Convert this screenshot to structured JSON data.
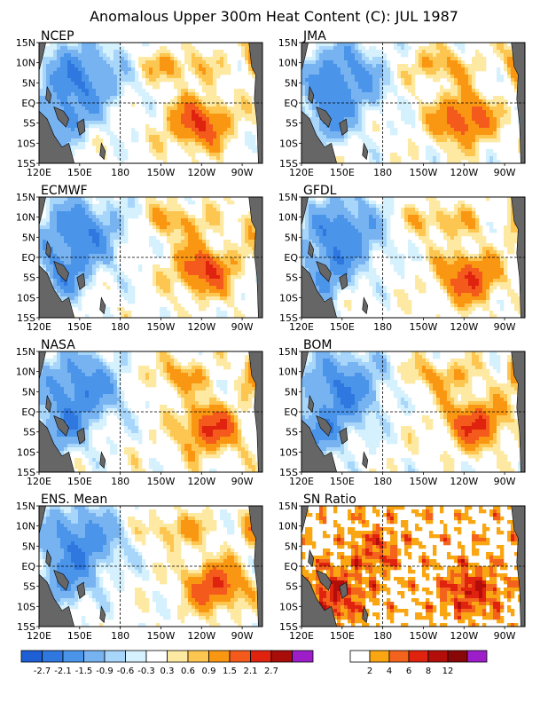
{
  "figure": {
    "title": "Anomalous Upper 300m Heat Content (C): JUL 1987"
  },
  "chart_data": [
    {
      "type": "heatmap",
      "title": "NCEP",
      "xticks": [
        "120E",
        "150E",
        "180",
        "150W",
        "120W",
        "90W"
      ],
      "yticks": [
        "15N",
        "10N",
        "5N",
        "EQ",
        "5S",
        "10S",
        "15S"
      ],
      "lon_range": [
        "120E",
        "75W"
      ],
      "lat_range": [
        -15,
        15
      ],
      "colorbar": "anomaly"
    },
    {
      "type": "heatmap",
      "title": "JMA",
      "xticks": [
        "120E",
        "150E",
        "180",
        "150W",
        "120W",
        "90W"
      ],
      "yticks": [
        "15N",
        "10N",
        "5N",
        "EQ",
        "5S",
        "10S",
        "15S"
      ],
      "lon_range": [
        "120E",
        "75W"
      ],
      "lat_range": [
        -15,
        15
      ],
      "colorbar": "anomaly"
    },
    {
      "type": "heatmap",
      "title": "ECMWF",
      "xticks": [
        "120E",
        "150E",
        "180",
        "150W",
        "120W",
        "90W"
      ],
      "yticks": [
        "15N",
        "10N",
        "5N",
        "EQ",
        "5S",
        "10S",
        "15S"
      ],
      "lon_range": [
        "120E",
        "75W"
      ],
      "lat_range": [
        -15,
        15
      ],
      "colorbar": "anomaly"
    },
    {
      "type": "heatmap",
      "title": "GFDL",
      "xticks": [
        "120E",
        "150E",
        "180",
        "150W",
        "120W",
        "90W"
      ],
      "yticks": [
        "15N",
        "10N",
        "5N",
        "EQ",
        "5S",
        "10S",
        "15S"
      ],
      "lon_range": [
        "120E",
        "75W"
      ],
      "lat_range": [
        -15,
        15
      ],
      "colorbar": "anomaly"
    },
    {
      "type": "heatmap",
      "title": "NASA",
      "xticks": [
        "120E",
        "150E",
        "180",
        "150W",
        "120W",
        "90W"
      ],
      "yticks": [
        "15N",
        "10N",
        "5N",
        "EQ",
        "5S",
        "10S",
        "15S"
      ],
      "lon_range": [
        "120E",
        "75W"
      ],
      "lat_range": [
        -15,
        15
      ],
      "colorbar": "anomaly"
    },
    {
      "type": "heatmap",
      "title": "BOM",
      "xticks": [
        "120E",
        "150E",
        "180",
        "150W",
        "120W",
        "90W"
      ],
      "yticks": [
        "15N",
        "10N",
        "5N",
        "EQ",
        "5S",
        "10S",
        "15S"
      ],
      "lon_range": [
        "120E",
        "75W"
      ],
      "lat_range": [
        -15,
        15
      ],
      "colorbar": "anomaly"
    },
    {
      "type": "heatmap",
      "title": "ENS. Mean",
      "xticks": [
        "120E",
        "150E",
        "180",
        "150W",
        "120W",
        "90W"
      ],
      "yticks": [
        "15N",
        "10N",
        "5N",
        "EQ",
        "5S",
        "10S",
        "15S"
      ],
      "lon_range": [
        "120E",
        "75W"
      ],
      "lat_range": [
        -15,
        15
      ],
      "colorbar": "anomaly"
    },
    {
      "type": "heatmap",
      "title": "SN Ratio",
      "xticks": [
        "120E",
        "150E",
        "180",
        "150W",
        "120W",
        "90W"
      ],
      "yticks": [
        "15N",
        "10N",
        "5N",
        "EQ",
        "5S",
        "10S",
        "15S"
      ],
      "lon_range": [
        "120E",
        "75W"
      ],
      "lat_range": [
        -15,
        15
      ],
      "colorbar": "sn"
    }
  ],
  "colorbars": {
    "anomaly": {
      "colors": [
        "#1f5fd6",
        "#2f78e0",
        "#4a94ea",
        "#77b3f1",
        "#a8d6fa",
        "#d4f1fd",
        "#ffffff",
        "#fde9a2",
        "#fcc650",
        "#fa9712",
        "#f45a1b",
        "#e0230f",
        "#a90d09",
        "#9d1ec8"
      ],
      "labels": [
        "-2.7",
        "-2.1",
        "-1.5",
        "-0.9",
        "-0.6",
        "-0.3",
        "0.3",
        "0.6",
        "0.9",
        "1.5",
        "2.1",
        "2.7"
      ]
    },
    "sn": {
      "colors": [
        "#ffffff",
        "#f9a612",
        "#f4631c",
        "#e0230f",
        "#b40e0a",
        "#8a0707",
        "#9d1ec8"
      ],
      "labels": [
        "2",
        "4",
        "6",
        "8",
        "12"
      ]
    }
  },
  "colors": {
    "land": "#666666",
    "frame": "#000000"
  }
}
